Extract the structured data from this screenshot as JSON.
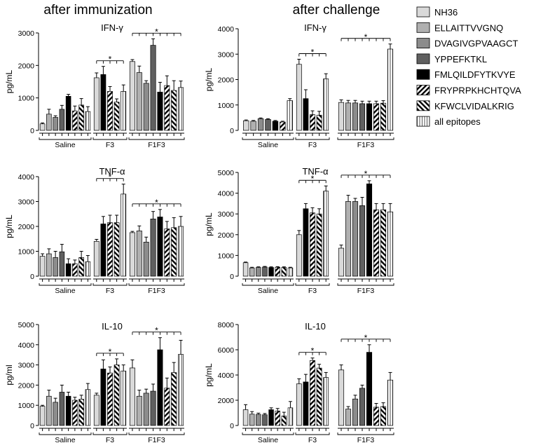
{
  "figure": {
    "column_titles": [
      "after immunization",
      "after challenge"
    ],
    "group_labels": [
      "Saline",
      "F3",
      "F1F3"
    ],
    "legend": [
      {
        "label": "NH36",
        "pattern": "lightgray"
      },
      {
        "label": "ELLAITTVVGNQ",
        "pattern": "gray1"
      },
      {
        "label": "DVAGIVGPVAAGCT",
        "pattern": "gray2"
      },
      {
        "label": "YPPEFKTKL",
        "pattern": "darkgray"
      },
      {
        "label": "FMLQILDFYTKVYE",
        "pattern": "black"
      },
      {
        "label": "FRYPRPKHCHTQVA",
        "pattern": "diag"
      },
      {
        "label": "KFWCLVIDALKRIG",
        "pattern": "backdiag"
      },
      {
        "label": "all epitopes",
        "pattern": "vert"
      }
    ],
    "colors": {
      "lightgray": "#d9d9d9",
      "gray1": "#b0b0b0",
      "gray2": "#8c8c8c",
      "darkgray": "#606060",
      "black": "#000000"
    }
  },
  "chart_data": [
    {
      "id": "ifn-immunization",
      "type": "bar",
      "title": "IFN-γ",
      "ylabel": "pg/mL",
      "yticks": [
        "0",
        "1000",
        "2000",
        "3000"
      ],
      "ylim": [
        0,
        3000
      ],
      "groups": [
        "Saline",
        "F3",
        "F1F3"
      ],
      "values": [
        [
          200,
          500,
          400,
          650,
          1050,
          600,
          780,
          580
        ],
        [
          1620,
          1720,
          1200,
          870,
          1200
        ],
        [
          2120,
          1780,
          1450,
          2620,
          1180,
          1380,
          1230,
          1320
        ]
      ],
      "errors": [
        [
          30,
          150,
          50,
          120,
          60,
          150,
          200,
          150
        ],
        [
          150,
          250,
          150,
          100,
          200
        ],
        [
          60,
          200,
          80,
          200,
          300,
          300,
          300,
          200
        ]
      ],
      "significance": [
        {
          "group": "F3",
          "label": "*"
        },
        {
          "group": "F1F3",
          "label": "*"
        }
      ]
    },
    {
      "id": "ifn-challenge",
      "type": "bar",
      "title": "IFN-γ",
      "ylabel": "pg/mL",
      "yticks": [
        "0",
        "1000",
        "2000",
        "3000",
        "4000"
      ],
      "ylim": [
        0,
        4000
      ],
      "groups": [
        "Saline",
        "F3",
        "F1F3"
      ],
      "values": [
        [
          380,
          360,
          460,
          430,
          360,
          330,
          1170
        ],
        [
          2600,
          1250,
          620,
          600,
          2030
        ],
        [
          1100,
          1080,
          1080,
          1050,
          1050,
          1050,
          1070,
          3200
        ]
      ],
      "errors": [
        [
          30,
          30,
          30,
          30,
          30,
          30,
          80
        ],
        [
          200,
          350,
          150,
          150,
          200
        ],
        [
          100,
          100,
          100,
          100,
          100,
          100,
          100,
          200
        ]
      ],
      "significance": [
        {
          "group": "F3",
          "label": "*"
        },
        {
          "group": "F1F3",
          "label": "*"
        }
      ]
    },
    {
      "id": "tnf-immunization",
      "type": "bar",
      "title": "TNF-α",
      "ylabel": "pg/mL",
      "yticks": [
        "0",
        "1000",
        "2000",
        "3000",
        "4000"
      ],
      "ylim": [
        0,
        4000
      ],
      "groups": [
        "Saline",
        "F3",
        "F1F3"
      ],
      "values": [
        [
          800,
          900,
          750,
          980,
          500,
          500,
          750,
          580
        ],
        [
          1400,
          2100,
          2150,
          2150,
          3300
        ],
        [
          1750,
          1820,
          1370,
          2300,
          2380,
          1900,
          1950,
          2000
        ]
      ],
      "errors": [
        [
          100,
          200,
          250,
          300,
          200,
          150,
          250,
          250
        ],
        [
          80,
          300,
          300,
          300,
          400
        ],
        [
          50,
          200,
          200,
          300,
          300,
          300,
          400,
          400
        ]
      ],
      "significance": [
        {
          "group": "F3",
          "label": "*"
        },
        {
          "group": "F1F3",
          "label": "*"
        }
      ]
    },
    {
      "id": "tnf-challenge",
      "type": "bar",
      "title": "TNF-α",
      "ylabel": "pg/mL",
      "yticks": [
        "0",
        "1000",
        "2000",
        "3000",
        "4000",
        "5000"
      ],
      "ylim": [
        0,
        5000
      ],
      "groups": [
        "Saline",
        "F3",
        "F1F3"
      ],
      "values": [
        [
          650,
          400,
          420,
          440,
          420,
          430,
          420,
          400
        ],
        [
          2000,
          3250,
          3050,
          3000,
          4100
        ],
        [
          1350,
          3600,
          3600,
          3400,
          4450,
          3200,
          3200,
          3100
        ]
      ],
      "errors": [
        [
          30,
          30,
          30,
          30,
          30,
          30,
          30,
          30
        ],
        [
          200,
          250,
          250,
          250,
          250
        ],
        [
          150,
          300,
          150,
          400,
          150,
          300,
          300,
          400
        ]
      ],
      "significance": [
        {
          "group": "F3",
          "label": "*"
        },
        {
          "group": "F1F3",
          "label": "*"
        }
      ]
    },
    {
      "id": "il10-immunization",
      "type": "bar",
      "title": "IL-10",
      "ylabel": "pg/ml",
      "yticks": [
        "0",
        "1000",
        "2000",
        "3000",
        "4000",
        "5000"
      ],
      "ylim": [
        0,
        5000
      ],
      "groups": [
        "Saline",
        "F3",
        "F1F3"
      ],
      "values": [
        [
          950,
          1450,
          1150,
          1650,
          1450,
          1250,
          1300,
          1780
        ],
        [
          1500,
          2800,
          2600,
          3000,
          2700
        ],
        [
          2850,
          1450,
          1600,
          1700,
          3750,
          1850,
          2620,
          3520
        ]
      ],
      "errors": [
        [
          50,
          300,
          200,
          350,
          200,
          150,
          200,
          300
        ],
        [
          100,
          450,
          300,
          300,
          300
        ],
        [
          400,
          300,
          200,
          350,
          600,
          500,
          500,
          700
        ]
      ],
      "significance": [
        {
          "group": "F3",
          "label": "*"
        },
        {
          "group": "F1F3",
          "label": "*"
        }
      ]
    },
    {
      "id": "il10-challenge",
      "type": "bar",
      "title": "IL-10",
      "ylabel": "pg/mL",
      "yticks": [
        "0",
        "2000",
        "4000",
        "6000",
        "8000"
      ],
      "ylim": [
        0,
        8000
      ],
      "groups": [
        "Saline",
        "F3",
        "F1F3"
      ],
      "values": [
        [
          1250,
          900,
          880,
          850,
          1250,
          1150,
          750,
          1400
        ],
        [
          3300,
          3450,
          5150,
          4550,
          3800
        ],
        [
          4400,
          1300,
          2100,
          2950,
          5800,
          1450,
          1500,
          3600
        ]
      ],
      "errors": [
        [
          400,
          200,
          100,
          100,
          150,
          200,
          300,
          500
        ],
        [
          400,
          600,
          200,
          300,
          400
        ],
        [
          400,
          200,
          300,
          250,
          600,
          300,
          300,
          600
        ]
      ],
      "significance": [
        {
          "group": "F3",
          "label": "*"
        },
        {
          "group": "F1F3",
          "label": "*"
        }
      ]
    }
  ]
}
